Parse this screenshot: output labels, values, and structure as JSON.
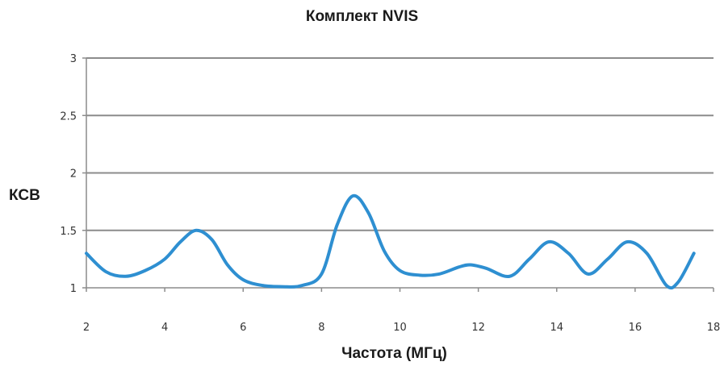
{
  "chart_data": {
    "type": "line",
    "title": "Комплект NVIS",
    "xlabel": "Частота (МГц)",
    "ylabel": "КСВ",
    "xlim": [
      2,
      18
    ],
    "ylim": [
      1,
      3
    ],
    "grid": true,
    "x_ticks": [
      "2",
      "4",
      "6",
      "8",
      "10",
      "12",
      "14",
      "16",
      "18"
    ],
    "y_ticks": [
      "1",
      "1.5",
      "2",
      "2.5",
      "3"
    ],
    "series": [
      {
        "color": "#2e8fd1",
        "x": [
          2,
          2.5,
          3,
          3.5,
          4,
          4.4,
          4.8,
          5.2,
          5.6,
          6,
          6.5,
          7,
          7.5,
          8,
          8.4,
          8.8,
          9.2,
          9.6,
          10,
          10.5,
          11,
          11.5,
          11.8,
          12.2,
          12.8,
          13.3,
          13.8,
          14.3,
          14.8,
          15.3,
          15.8,
          16.3,
          16.8,
          17.1,
          17.5
        ],
        "y": [
          1.3,
          1.14,
          1.1,
          1.15,
          1.25,
          1.4,
          1.5,
          1.42,
          1.2,
          1.07,
          1.02,
          1.01,
          1.02,
          1.12,
          1.55,
          1.8,
          1.65,
          1.32,
          1.15,
          1.11,
          1.12,
          1.18,
          1.2,
          1.17,
          1.1,
          1.25,
          1.4,
          1.3,
          1.12,
          1.25,
          1.4,
          1.3,
          1.02,
          1.05,
          1.3
        ]
      }
    ]
  }
}
